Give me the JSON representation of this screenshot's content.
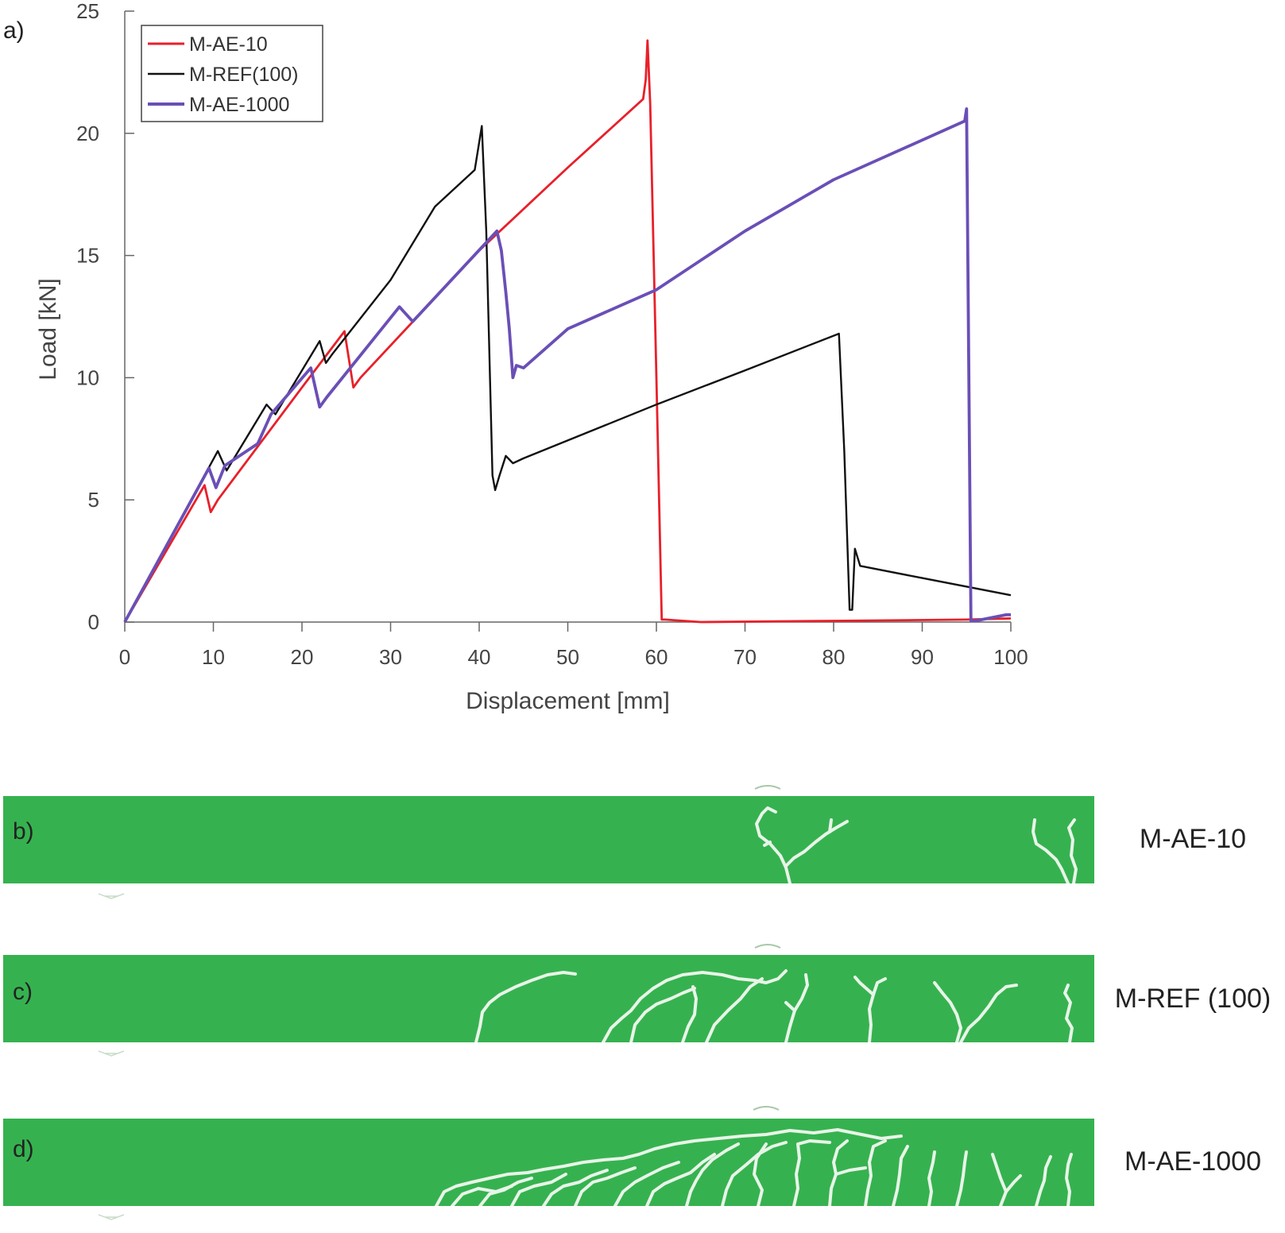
{
  "figure": {
    "panel_a_letter": "a)",
    "panel_b_letter": "b)",
    "panel_c_letter": "c)",
    "panel_d_letter": "d)"
  },
  "colors": {
    "m_ae_10": "#e8202a",
    "m_ref_100": "#111111",
    "m_ae_1000": "#6a4fb6",
    "beam_green": "#35b24f",
    "crack": "#e8f4e8"
  },
  "chart_data": {
    "type": "line",
    "title": "",
    "xlabel": "Displacement [mm]",
    "ylabel": "Load [kN]",
    "xlim": [
      0,
      100
    ],
    "ylim": [
      0,
      25
    ],
    "xticks": [
      0,
      10,
      20,
      30,
      40,
      50,
      60,
      70,
      80,
      90,
      100
    ],
    "yticks": [
      0,
      5,
      10,
      15,
      20,
      25
    ],
    "grid": false,
    "legend_position": "top-left",
    "series": [
      {
        "name": "M-AE-10",
        "color": "#e8202a",
        "points": [
          [
            0,
            0
          ],
          [
            9,
            5.6
          ],
          [
            9.7,
            4.5
          ],
          [
            10.5,
            5.0
          ],
          [
            20,
            9.6
          ],
          [
            24.8,
            11.9
          ],
          [
            25.8,
            9.6
          ],
          [
            26.6,
            10.0
          ],
          [
            40,
            15.2
          ],
          [
            50,
            18.6
          ],
          [
            58.5,
            21.4
          ],
          [
            58.8,
            22.2
          ],
          [
            59.0,
            23.8
          ],
          [
            59.3,
            21.2
          ],
          [
            60,
            10.0
          ],
          [
            60.6,
            0.1
          ],
          [
            61,
            0.1
          ],
          [
            65,
            0.0
          ],
          [
            80,
            0.05
          ],
          [
            95,
            0.1
          ],
          [
            100,
            0.15
          ]
        ]
      },
      {
        "name": "M-REF(100)",
        "color": "#111111",
        "points": [
          [
            0,
            0
          ],
          [
            9,
            6.0
          ],
          [
            10.5,
            7.0
          ],
          [
            11.5,
            6.2
          ],
          [
            16,
            8.9
          ],
          [
            17,
            8.5
          ],
          [
            22,
            11.5
          ],
          [
            22.7,
            10.6
          ],
          [
            23.5,
            11.0
          ],
          [
            30,
            14.0
          ],
          [
            35,
            17.0
          ],
          [
            39.5,
            18.5
          ],
          [
            40.3,
            20.3
          ],
          [
            40.8,
            16.0
          ],
          [
            41.5,
            6.0
          ],
          [
            41.8,
            5.4
          ],
          [
            42.3,
            6.0
          ],
          [
            43,
            6.8
          ],
          [
            43.8,
            6.5
          ],
          [
            45,
            6.7
          ],
          [
            60,
            8.9
          ],
          [
            70,
            10.3
          ],
          [
            80.6,
            11.8
          ],
          [
            81.2,
            7.0
          ],
          [
            81.8,
            0.5
          ],
          [
            82.1,
            0.5
          ],
          [
            82.4,
            3.0
          ],
          [
            83,
            2.3
          ],
          [
            90,
            1.8
          ],
          [
            100,
            1.1
          ]
        ]
      },
      {
        "name": "M-AE-1000",
        "color": "#6a4fb6",
        "points": [
          [
            0,
            0
          ],
          [
            9.5,
            6.3
          ],
          [
            10.3,
            5.5
          ],
          [
            11.3,
            6.4
          ],
          [
            15,
            7.3
          ],
          [
            16.5,
            8.5
          ],
          [
            21,
            10.4
          ],
          [
            22,
            8.8
          ],
          [
            22.8,
            9.2
          ],
          [
            31,
            12.9
          ],
          [
            32.5,
            12.3
          ],
          [
            42,
            16.0
          ],
          [
            42.5,
            15.2
          ],
          [
            43,
            13.5
          ],
          [
            43.4,
            12.0
          ],
          [
            43.8,
            10.0
          ],
          [
            44.2,
            10.5
          ],
          [
            45,
            10.4
          ],
          [
            50,
            12.0
          ],
          [
            60,
            13.6
          ],
          [
            70,
            16.0
          ],
          [
            80,
            18.1
          ],
          [
            94.8,
            20.5
          ],
          [
            95.0,
            21.0
          ],
          [
            95.5,
            0.05
          ],
          [
            96,
            0.05
          ],
          [
            99.5,
            0.3
          ],
          [
            100,
            0.3
          ]
        ]
      }
    ]
  },
  "beams": [
    {
      "letter": "b)",
      "label": "M-AE-10"
    },
    {
      "letter": "c)",
      "label": "M-REF (100)"
    },
    {
      "letter": "d)",
      "label": "M-AE-1000"
    }
  ]
}
